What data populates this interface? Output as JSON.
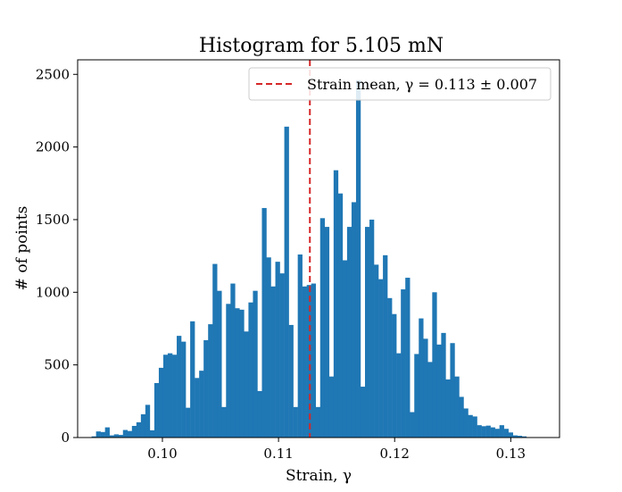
{
  "chart_data": {
    "type": "bar",
    "title": "Histogram for 5.105 mN",
    "xlabel": "Strain, γ",
    "ylabel": "# of points",
    "xlim": [
      0.0927,
      0.1342
    ],
    "ylim": [
      0,
      2600
    ],
    "xticks": [
      {
        "value": 0.1,
        "label": "0.10"
      },
      {
        "value": 0.11,
        "label": "0.11"
      },
      {
        "value": 0.12,
        "label": "0.12"
      },
      {
        "value": 0.13,
        "label": "0.13"
      }
    ],
    "yticks": [
      {
        "value": 0,
        "label": "0"
      },
      {
        "value": 500,
        "label": "500"
      },
      {
        "value": 1000,
        "label": "1000"
      },
      {
        "value": 1500,
        "label": "1500"
      },
      {
        "value": 2000,
        "label": "2000"
      },
      {
        "value": 2500,
        "label": "2500"
      }
    ],
    "bar_color": "#1f77b4",
    "bin_start": 0.0939,
    "bin_width": 0.000386,
    "values": [
      8,
      42,
      38,
      70,
      15,
      22,
      18,
      52,
      45,
      80,
      105,
      160,
      225,
      50,
      375,
      480,
      570,
      580,
      570,
      700,
      660,
      205,
      800,
      410,
      460,
      670,
      780,
      1195,
      1010,
      210,
      920,
      1060,
      890,
      880,
      730,
      930,
      1010,
      320,
      1580,
      1240,
      1040,
      1210,
      1130,
      2140,
      775,
      210,
      1260,
      1040,
      1050,
      1060,
      210,
      1510,
      1450,
      420,
      1840,
      1680,
      1220,
      1450,
      1620,
      2460,
      350,
      1450,
      1500,
      1190,
      1090,
      1255,
      960,
      850,
      580,
      1020,
      1100,
      175,
      575,
      820,
      680,
      520,
      1000,
      640,
      720,
      400,
      650,
      420,
      280,
      200,
      155,
      145,
      85,
      78,
      82,
      70,
      60,
      85,
      60,
      35,
      15,
      12,
      8
    ],
    "mean_line": {
      "value": 0.1127,
      "color": "#d62728",
      "style": "dashed"
    },
    "legend": {
      "position": "top-right",
      "entries": [
        {
          "label": "Strain mean, γ = 0.113 ± 0.007",
          "color": "#d62728",
          "style": "dashed"
        }
      ]
    },
    "grid": false
  }
}
